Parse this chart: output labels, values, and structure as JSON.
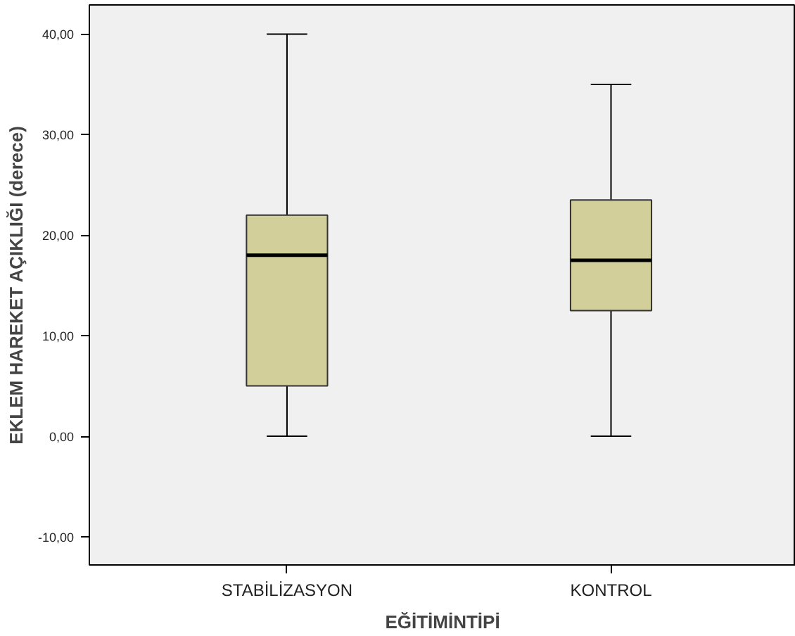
{
  "chart_data": {
    "type": "box",
    "xlabel": "EĞİTİMİNTİPİ",
    "ylabel": "EKLEM HAREKET AÇIKLIĞI (derece)",
    "categories": [
      "STABİLİZASYON",
      "KONTROL"
    ],
    "boxes": [
      {
        "low": 0,
        "q1": 5,
        "median": 18,
        "q3": 22,
        "high": 40
      },
      {
        "low": 0,
        "q1": 12.5,
        "median": 17.5,
        "q3": 23.5,
        "high": 35
      }
    ],
    "color": "#d3cf9a",
    "ylim": [
      -12.8,
      42.9
    ],
    "yticks": [
      {
        "value": -10,
        "label": "-10,00"
      },
      {
        "value": 0,
        "label": "0,00"
      },
      {
        "value": 10,
        "label": "10,00"
      },
      {
        "value": 20,
        "label": "20,00"
      },
      {
        "value": 30,
        "label": "30,00"
      },
      {
        "value": 40,
        "label": "40,00"
      }
    ],
    "grid": false
  }
}
